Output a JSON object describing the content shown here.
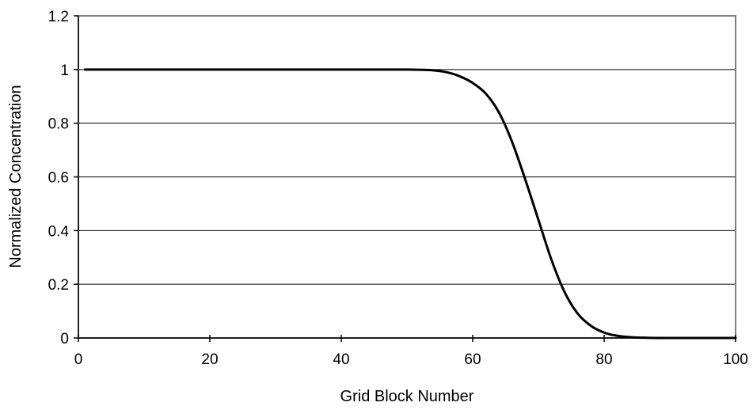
{
  "chart_data": {
    "type": "line",
    "title": "",
    "xlabel": "Grid Block Number",
    "ylabel": "Normalized Concentration",
    "xlim": [
      0,
      100
    ],
    "ylim": [
      0,
      1.2
    ],
    "x_ticks": [
      "0",
      "20",
      "40",
      "60",
      "80",
      "100"
    ],
    "y_ticks": [
      "0",
      "0.2",
      "0.4",
      "0.6",
      "0.8",
      "1",
      "1.2"
    ],
    "grid": "horizontal",
    "legend": "none",
    "colors": {
      "line": "#000000",
      "grid": "#000000",
      "plot_border": "#808080",
      "axis": "#000000"
    },
    "series": [
      {
        "x": [
          1,
          5,
          10,
          15,
          20,
          25,
          30,
          35,
          40,
          45,
          50,
          52,
          54,
          56,
          58,
          60,
          62,
          64,
          66,
          68,
          70,
          72,
          74,
          76,
          78,
          80,
          82,
          84,
          86,
          88,
          90,
          95,
          100
        ],
        "values": [
          1,
          1,
          1,
          1,
          1,
          1,
          1,
          1,
          1,
          1,
          1,
          0.999,
          0.997,
          0.99,
          0.975,
          0.95,
          0.91,
          0.84,
          0.73,
          0.59,
          0.44,
          0.29,
          0.17,
          0.09,
          0.045,
          0.02,
          0.008,
          0.003,
          0.001,
          0,
          0,
          0,
          0
        ]
      }
    ]
  }
}
